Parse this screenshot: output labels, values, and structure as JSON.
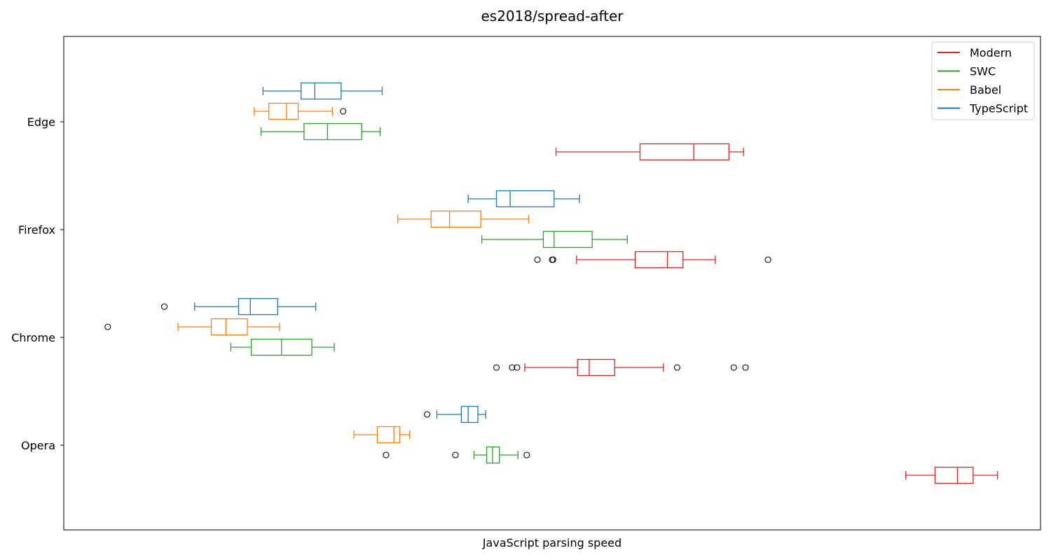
{
  "chart_data": {
    "type": "boxplot",
    "orientation": "horizontal",
    "title": "es2018/spread-after",
    "xlabel": "JavaScript parsing speed",
    "ylabel": "",
    "x_ticks_shown": false,
    "xlim": [
      0,
      100
    ],
    "categories": [
      "Opera",
      "Chrome",
      "Firefox",
      "Edge"
    ],
    "legend": {
      "position": "top-right",
      "entries": [
        "Modern",
        "SWC",
        "Babel",
        "TypeScript"
      ]
    },
    "series": [
      {
        "name": "Modern",
        "color": "#d62728",
        "boxes": [
          {
            "category": "Opera",
            "whislo": 86.2,
            "q1": 89.2,
            "med": 91.5,
            "q3": 93.1,
            "whishi": 95.6,
            "fliers": []
          },
          {
            "category": "Chrome",
            "whislo": 47.2,
            "q1": 52.6,
            "med": 53.8,
            "q3": 56.4,
            "whishi": 61.4,
            "fliers": [
              44.3,
              45.9,
              46.4,
              62.8,
              68.6,
              69.8
            ]
          },
          {
            "category": "Firefox",
            "whislo": 52.5,
            "q1": 58.5,
            "med": 61.8,
            "q3": 63.4,
            "whishi": 66.7,
            "fliers": [
              48.5,
              50.1,
              50.0,
              72.1
            ]
          },
          {
            "category": "Edge",
            "whislo": 50.4,
            "q1": 59.0,
            "med": 64.5,
            "q3": 68.1,
            "whishi": 69.6,
            "fliers": []
          }
        ]
      },
      {
        "name": "SWC",
        "color": "#2ca02c",
        "boxes": [
          {
            "category": "Opera",
            "whislo": 42.0,
            "q1": 43.3,
            "med": 43.9,
            "q3": 44.6,
            "whishi": 46.5,
            "fliers": [
              33.0,
              40.1,
              47.4
            ]
          },
          {
            "category": "Chrome",
            "whislo": 17.1,
            "q1": 19.2,
            "med": 22.3,
            "q3": 25.4,
            "whishi": 27.7,
            "fliers": []
          },
          {
            "category": "Firefox",
            "whislo": 42.8,
            "q1": 49.1,
            "med": 50.2,
            "q3": 54.1,
            "whishi": 57.7,
            "fliers": []
          },
          {
            "category": "Edge",
            "whislo": 20.2,
            "q1": 24.6,
            "med": 27.0,
            "q3": 30.5,
            "whishi": 32.4,
            "fliers": []
          }
        ]
      },
      {
        "name": "Babel",
        "color": "#ff7f0e",
        "boxes": [
          {
            "category": "Opera",
            "whislo": 29.7,
            "q1": 32.1,
            "med": 33.8,
            "q3": 34.4,
            "whishi": 35.4,
            "fliers": []
          },
          {
            "category": "Chrome",
            "whislo": 11.7,
            "q1": 15.1,
            "med": 16.6,
            "q3": 18.8,
            "whishi": 22.1,
            "fliers": [
              4.5
            ]
          },
          {
            "category": "Firefox",
            "whislo": 34.2,
            "q1": 37.6,
            "med": 39.5,
            "q3": 42.7,
            "whishi": 47.6,
            "fliers": []
          },
          {
            "category": "Edge",
            "whislo": 19.5,
            "q1": 21.0,
            "med": 22.8,
            "q3": 24.0,
            "whishi": 27.5,
            "fliers": [
              28.6
            ]
          }
        ]
      },
      {
        "name": "TypeScript",
        "color": "#1f77b4",
        "boxes": [
          {
            "category": "Opera",
            "whislo": 38.2,
            "q1": 40.7,
            "med": 41.4,
            "q3": 42.4,
            "whishi": 43.2,
            "fliers": [
              37.2
            ]
          },
          {
            "category": "Chrome",
            "whislo": 13.4,
            "q1": 17.9,
            "med": 19.1,
            "q3": 21.9,
            "whishi": 25.8,
            "fliers": [
              10.3
            ]
          },
          {
            "category": "Firefox",
            "whislo": 41.4,
            "q1": 44.3,
            "med": 45.7,
            "q3": 50.2,
            "whishi": 52.8,
            "fliers": []
          },
          {
            "category": "Edge",
            "whislo": 20.4,
            "q1": 24.3,
            "med": 25.7,
            "q3": 28.4,
            "whishi": 32.6,
            "fliers": []
          }
        ]
      }
    ]
  }
}
